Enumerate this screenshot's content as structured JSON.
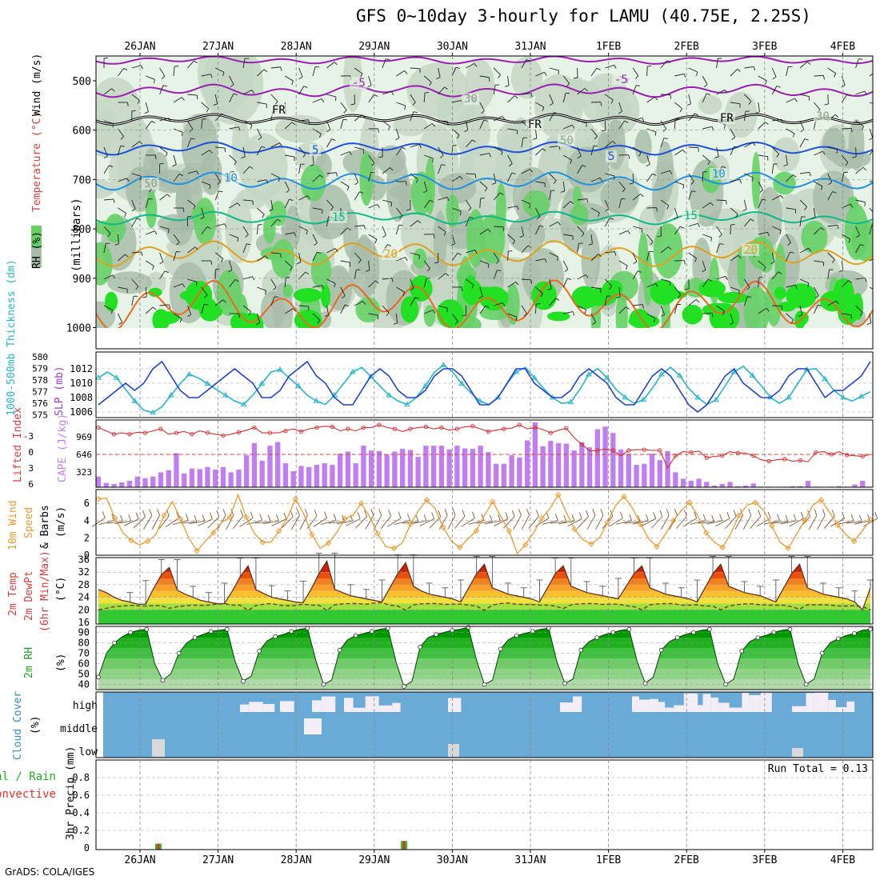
{
  "title": "GFS 0~10day 3-hourly for LAMU (40.75E, 2.25S)",
  "footer": "GrADS: COLA/IGES",
  "dates": [
    "26JAN",
    "27JAN",
    "28JAN",
    "29JAN",
    "30JAN",
    "31JAN",
    "1FEB",
    "2FEB",
    "3FEB",
    "4FEB"
  ],
  "colors": {
    "rh_light": "#e8f3e8",
    "rh_mid": "#c4d6c4",
    "rh_grey": "#a9bca9",
    "rh_green": "#66d066",
    "rh_bright": "#22e022",
    "temp_neg5": "#9a1fb2",
    "temp_5": "#2050d8",
    "temp_10": "#2090e0",
    "temp_15": "#10b888",
    "temp_20": "#e0a020",
    "temp_25": "#e86a20",
    "slp": "#1f3fc8",
    "thick": "#28b4c8",
    "cape_bar": "#c07ef0",
    "li": "#d03030",
    "wind10": "#e89a30",
    "barb": "#7a5a3a",
    "cloud_bg": "#6aaad6",
    "tmax": "#d02000",
    "dew": "#7a3a2a"
  },
  "panels": {
    "sounding": {
      "ylabel_rh": "RH (%)",
      "ylabel_temp": "Temperature (°C)",
      "ylabel_wind": "Wind (m/s)",
      "ylabel_units": "(millibars)",
      "y_ticks": [
        "500",
        "600",
        "700",
        "800",
        "900",
        "1000"
      ],
      "contour_labels": [
        {
          "t": "-5"
        },
        {
          "t": "-5"
        },
        {
          "t": "FR"
        },
        {
          "t": "FR"
        },
        {
          "t": "FR"
        },
        {
          "t": "5"
        },
        {
          "t": "5"
        },
        {
          "t": "10"
        },
        {
          "t": "10"
        },
        {
          "t": "15"
        },
        {
          "t": "15"
        },
        {
          "t": "20"
        },
        {
          "t": "20"
        },
        {
          "t": "30"
        },
        {
          "t": "30"
        },
        {
          "t": "50"
        },
        {
          "t": "50"
        }
      ]
    },
    "slp": {
      "ylabel_left": "1000-500mb Thickness (dm)",
      "ylabel_right": "SLP (mb)",
      "left_ticks": [
        "580",
        "579",
        "578",
        "577",
        "576",
        "575"
      ],
      "right_ticks": [
        "1012",
        "1010",
        "1008",
        "1006"
      ]
    },
    "cape": {
      "ylabel_left": "Lifted Index",
      "ylabel_right": "CAPE (J/kg)",
      "left_ticks": [
        "-3",
        "0",
        "3",
        "6"
      ],
      "right_ticks": [
        "969",
        "646",
        "323"
      ]
    },
    "wind10": {
      "ylabel": "10m Wind Speed & Barbs",
      "ylabel_line1": "10m Wind",
      "ylabel_line2": "Speed",
      "ylabel_line3": "& Barbs",
      "units": "(m/s)",
      "ticks": [
        "6",
        "4",
        "2",
        "0"
      ]
    },
    "temp2m": {
      "ylabel_line1": "2m Temp",
      "ylabel_line2": "2m DewPt",
      "ylabel_line3": "(6hr Min/Max)",
      "units": "(°C)",
      "ticks": [
        "36",
        "32",
        "28",
        "24",
        "20",
        "16"
      ]
    },
    "rh2m": {
      "ylabel": "2m RH",
      "units": "(%)",
      "ticks": [
        "90",
        "80",
        "70",
        "60",
        "50",
        "40"
      ]
    },
    "cloud": {
      "ylabel": "Cloud Cover",
      "units": "(%)",
      "levels": [
        "high",
        "middle",
        "low"
      ]
    },
    "precip": {
      "ylabel_total": "Total / Rain",
      "ylabel_conv": "Convective",
      "ylabel": "3hr Precip (mm)",
      "ticks": [
        "0.8",
        "0.6",
        "0.4",
        "0.2",
        "0"
      ],
      "run_total": "Run Total = 0.13"
    }
  },
  "chart_data": [
    {
      "type": "line",
      "name": "sea level pressure and 1000-500mb thickness",
      "x_unit": "3-hourly steps from 25JAN 12Z",
      "series": [
        {
          "name": "SLP (mb)",
          "values": [
            1007,
            1008,
            1009,
            1010,
            1009,
            1010,
            1012,
            1013,
            1011,
            1009,
            1008,
            1008,
            1009,
            1010,
            1011,
            1012,
            1011,
            1010,
            1008,
            1008,
            1009,
            1011,
            1012,
            1013,
            1011,
            1010,
            1008,
            1007,
            1007,
            1009,
            1011,
            1012,
            1011,
            1009,
            1008,
            1008,
            1009,
            1011,
            1012,
            1012,
            1011,
            1009,
            1007,
            1007,
            1008,
            1010,
            1012,
            1012,
            1010,
            1009,
            1008,
            1008,
            1009,
            1011,
            1012,
            1011,
            1010,
            1008,
            1007,
            1007,
            1009,
            1011,
            1012,
            1011,
            1009,
            1007,
            1006,
            1007,
            1009,
            1011,
            1012,
            1010,
            1009,
            1008,
            1008,
            1009,
            1011,
            1012,
            1012,
            1010,
            1008,
            1009,
            1009,
            1010,
            1011,
            1013
          ]
        },
        {
          "name": "1000-500mb Thickness (dm)",
          "values": [
            578.5,
            579,
            578.5,
            577.5,
            576.5,
            575.7,
            575.5,
            576,
            577,
            578,
            578.8,
            578.5,
            578,
            577.5,
            577,
            576.5,
            576.2,
            577,
            578,
            579,
            579.2,
            578.5,
            577.8,
            577,
            576.5,
            576.2,
            577,
            578,
            579,
            579.4,
            578.6,
            577.8,
            577,
            576.5,
            576.2,
            576.8,
            577.8,
            579,
            579.6,
            579,
            578,
            577.2,
            576.5,
            576.2,
            576.8,
            578,
            579,
            579.4,
            578.5,
            577.6,
            576.8,
            576.3,
            576.4,
            577.5,
            578.8,
            579.3,
            578.5,
            577.5,
            576.8,
            576.3,
            576.6,
            577.6,
            578.8,
            579.4,
            578.7,
            577.6,
            576.8,
            576.2,
            576.6,
            577.8,
            579,
            579.5,
            578.7,
            577.8,
            576.8,
            576.3,
            576.8,
            578,
            579.2,
            579.3,
            578.4,
            577.4,
            576.8,
            576.5,
            576.9,
            577.3
          ]
        }
      ],
      "ylim_left": [
        575,
        580.5
      ],
      "ylim_right": [
        1005,
        1014
      ]
    },
    {
      "type": "bar",
      "name": "CAPE and Lifted Index",
      "series": [
        {
          "name": "CAPE (J/kg)",
          "values": [
            200,
            80,
            60,
            90,
            120,
            200,
            170,
            200,
            280,
            320,
            640,
            260,
            350,
            340,
            380,
            330,
            380,
            280,
            330,
            600,
            830,
            500,
            780,
            850,
            450,
            300,
            400,
            380,
            420,
            450,
            420,
            630,
            670,
            450,
            780,
            690,
            680,
            610,
            670,
            720,
            700,
            570,
            780,
            780,
            780,
            710,
            780,
            730,
            720,
            780,
            660,
            440,
            440,
            600,
            560,
            880,
            1220,
            770,
            870,
            830,
            820,
            690,
            840,
            750,
            1090,
            1140,
            1020,
            710,
            630,
            420,
            440,
            630,
            510,
            680,
            280,
            160,
            120,
            160,
            100,
            30,
            60,
            100,
            20,
            30,
            70,
            10,
            10,
            0,
            10,
            20,
            20,
            120,
            10,
            0,
            10,
            20,
            10,
            50,
            120,
            10
          ]
        },
        {
          "name": "Lifted Index",
          "values": [
            -4,
            -3.5,
            -3,
            -3.2,
            -3,
            -3.3,
            -3.2,
            -3.5,
            -3.8,
            -3,
            -3.2,
            -3.4,
            -3,
            -3.5,
            -3.2,
            -3,
            -2.8,
            -3,
            -3.3,
            -3.6,
            -4,
            -3.2,
            -3.2,
            -3.2,
            -3.5,
            -3.8,
            -3.4,
            -3.8,
            -4,
            -4.2,
            -4.1,
            -3.5,
            -3.8,
            -3.5,
            -4,
            -4,
            -4.4,
            -4,
            -3.8,
            -3.4,
            -3.8,
            -4,
            -4.1,
            -3.8,
            -4,
            -3.6,
            -3.8,
            -4.1,
            -4.2,
            -3.8,
            -3.4,
            -3.6,
            -3.8,
            -3.9,
            -4.4,
            -3.8,
            -4,
            -3.7,
            -3.2,
            -3.6,
            -3.9,
            -2.5,
            -1.5,
            -0.5,
            -0.6,
            -0.8,
            -0.6,
            0.2,
            -0.6,
            -0.7,
            -0.7,
            -0.6,
            -0.6,
            2,
            0.2,
            -0.4,
            -0.3,
            -0.5,
            0.5,
            0.3,
            0.2,
            -0.4,
            -0.2,
            -0.2,
            0.2,
            0.8,
            1,
            0.8,
            0.7,
            1,
            0.9,
            1.1,
            -0.3,
            -0.4,
            0,
            -0.4,
            0.1,
            0.2,
            0.3,
            0
          ]
        }
      ],
      "ylim_right": [
        0,
        1290
      ],
      "ylim_left": [
        6,
        -4.5
      ]
    },
    {
      "type": "line",
      "name": "10m wind speed",
      "series": [
        {
          "name": "10m Wind Speed (m/s)",
          "values": [
            6.5,
            6.6,
            4.3,
            2.6,
            1.7,
            1.2,
            1.6,
            2.4,
            4.6,
            6.2,
            4.2,
            2.0,
            0.5,
            1.6,
            2.6,
            3.8,
            4.4,
            7.0,
            4.4,
            2.5,
            1.5,
            1.5,
            2.8,
            4.3,
            6.5,
            4.8,
            2.4,
            0.8,
            1.4,
            2.6,
            4.2,
            4.6,
            6.0,
            4.5,
            2.5,
            1.0,
            0.8,
            1.4,
            3.6,
            5.2,
            6.4,
            5.4,
            3.2,
            1.6,
            0.9,
            1.9,
            2.8,
            4.6,
            6.2,
            4.5,
            2.8,
            0.2,
            1.2,
            2.6,
            4.3,
            5.4,
            7.0,
            4.9,
            3.0,
            1.8,
            1.3,
            2.0,
            3.8,
            5.8,
            6.8,
            5.5,
            3.6,
            1.9,
            1.0,
            2.4,
            4.0,
            5.2,
            6.1,
            4.5,
            2.6,
            1.5,
            0.9,
            2.5,
            4.6,
            5.8,
            6.1,
            5.2,
            3.4,
            1.5,
            0.8,
            2.4,
            4.0,
            5.8,
            6.4,
            5.0,
            3.5,
            2.4,
            1.6,
            2.8,
            4.1
          ]
        }
      ],
      "ylim": [
        0,
        7.5
      ]
    },
    {
      "type": "area",
      "name": "2m temperature and dewpoint",
      "series": [
        {
          "name": "2m Temp (°C)",
          "values": [
            26.5,
            25.5,
            24,
            23,
            22.5,
            21.8,
            21.8,
            26.8,
            31.2,
            33.5,
            26.3,
            25,
            24,
            23,
            22.5,
            22,
            22,
            26,
            30.5,
            34,
            26.4,
            25.2,
            24,
            23.5,
            23,
            22.5,
            22.3,
            26.6,
            31.5,
            35.5,
            26.5,
            25.5,
            24.5,
            24,
            23.5,
            23,
            22.5,
            27,
            31.5,
            35,
            27.5,
            26,
            25,
            24.5,
            24,
            23.5,
            22.5,
            27,
            31.5,
            34.5,
            27,
            26,
            25,
            24.5,
            24,
            23.5,
            22.5,
            27,
            31.5,
            34,
            27.5,
            26.5,
            25.5,
            25,
            24.5,
            24,
            23.5,
            27.5,
            31.5,
            34,
            27,
            26,
            25,
            24.5,
            24,
            23.5,
            22.5,
            27,
            31.5,
            34.5,
            27.5,
            26.5,
            25.5,
            25,
            24.5,
            23.5,
            22.5,
            27,
            31.5,
            34.5,
            27,
            26,
            25,
            24.5,
            24,
            23.5,
            22.5,
            20,
            27
          ]
        },
        {
          "name": "2m DewPt (°C)",
          "values": [
            20,
            20.5,
            21,
            21.2,
            21.4,
            21.3,
            21.2,
            21.3,
            21.3,
            20.5,
            21,
            21.3,
            21.5,
            21.4,
            21.5,
            21.8,
            22,
            21.5,
            21.5,
            19.8,
            21.4,
            21.8,
            22,
            21.5,
            21.3,
            21.4,
            21.8,
            21.5,
            21.5,
            19.8,
            21.6,
            21.9,
            22,
            22,
            21.8,
            22.2,
            22.3,
            21.5,
            21.2,
            19.9,
            21.6,
            21.9,
            22,
            22,
            21.7,
            21.8,
            21.8,
            21.5,
            21.2,
            19.8,
            21.5,
            22,
            22.2,
            21.8,
            21.7,
            21.7,
            21.5,
            21.5,
            21.2,
            20.4,
            21.6,
            21.9,
            22,
            22,
            21.7,
            21.8,
            21.8,
            21.3,
            21,
            20,
            21.6,
            21.9,
            22,
            22,
            21.5,
            21.5,
            21.6,
            21.2,
            21.2,
            20,
            21.2,
            21.6,
            21.9,
            21.9,
            21.6,
            21.5,
            21.5,
            21.5,
            21,
            20.2,
            21.6,
            21.6,
            21.6,
            21.5,
            21.2,
            21.2,
            21.3,
            21,
            20
          ]
        }
      ],
      "ylim": [
        15.5,
        37
      ]
    },
    {
      "type": "area",
      "name": "2m relative humidity",
      "series": [
        {
          "name": "2m RH (%)",
          "values": [
            47,
            70,
            80,
            86,
            90,
            92,
            93,
            60,
            44,
            50,
            70,
            80,
            85,
            88,
            91,
            92,
            93,
            62,
            43,
            48,
            72,
            82,
            86,
            88,
            91,
            93,
            94,
            64,
            40,
            44,
            73,
            83,
            87,
            89,
            91,
            93,
            94,
            62,
            38,
            43,
            76,
            85,
            88,
            90,
            92,
            93,
            95,
            64,
            40,
            44,
            74,
            83,
            87,
            89,
            91,
            93,
            94,
            62,
            41,
            45,
            73,
            81,
            85,
            88,
            90,
            92,
            93,
            62,
            41,
            47,
            73,
            81,
            85,
            88,
            90,
            92,
            93,
            60,
            40,
            45,
            72,
            81,
            85,
            87,
            90,
            92,
            93,
            60,
            40,
            45,
            70,
            80,
            84,
            87,
            89,
            92,
            93
          ]
        }
      ],
      "ylim": [
        35,
        96
      ]
    },
    {
      "type": "bar",
      "name": "cloud cover",
      "categories": [
        "high",
        "middle",
        "low"
      ]
    },
    {
      "type": "bar",
      "name": "3hr precipitation",
      "series": [
        {
          "name": "3hr Precip (mm)",
          "values": [
            0.05,
            0.08
          ]
        }
      ],
      "ylim": [
        0,
        1.0
      ]
    }
  ]
}
